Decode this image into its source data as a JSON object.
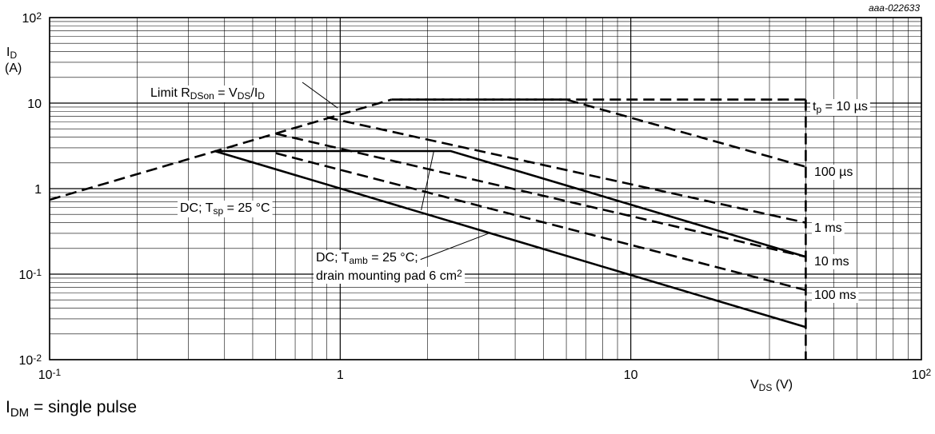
{
  "figure_code": "aaa-022633",
  "footnote": {
    "base": "I",
    "sub": "DM",
    "rest": " = single pulse"
  },
  "chart_data": {
    "type": "line",
    "xscale": "log",
    "yscale": "log",
    "xlim": [
      0.1,
      100
    ],
    "ylim": [
      0.01,
      100
    ],
    "grid": true,
    "x_ticks": [
      {
        "value": 0.1,
        "base": "10",
        "exp": "-1"
      },
      {
        "value": 1,
        "base": "1",
        "exp": ""
      },
      {
        "value": 10,
        "base": "10",
        "exp": ""
      },
      {
        "value": 100,
        "base": "10",
        "exp": "2"
      }
    ],
    "y_ticks": [
      {
        "value": 0.01,
        "base": "10",
        "exp": "-2"
      },
      {
        "value": 0.1,
        "base": "10",
        "exp": "-1"
      },
      {
        "value": 1,
        "base": "1",
        "exp": ""
      },
      {
        "value": 10,
        "base": "10",
        "exp": ""
      },
      {
        "value": 100,
        "base": "10",
        "exp": "2"
      }
    ],
    "ylabel": {
      "base": "I",
      "sub": "D",
      "unit": "(A)"
    },
    "xlabel": {
      "base": "V",
      "sub": "DS",
      "rest": " (V)"
    },
    "series": [
      {
        "name": "Limit R_DSon = V_DS/I_D",
        "style": "dashed",
        "x": [
          0.1,
          1.5
        ],
        "y": [
          0.74,
          11
        ]
      },
      {
        "name": "t_p = 10 µs",
        "style": "dashed",
        "x": [
          1.5,
          40
        ],
        "y": [
          11,
          11
        ]
      },
      {
        "name": "100 µs",
        "style": "dashed",
        "x": [
          1.6,
          6,
          40
        ],
        "y": [
          11,
          11,
          1.8
        ]
      },
      {
        "name": "1 ms",
        "style": "dashed",
        "x": [
          0.9,
          40
        ],
        "y": [
          6.8,
          0.4
        ]
      },
      {
        "name": "10 ms",
        "style": "dashed",
        "x": [
          0.6,
          40
        ],
        "y": [
          4.4,
          0.16
        ]
      },
      {
        "name": "100 ms",
        "style": "dashed",
        "x": [
          0.6,
          40
        ],
        "y": [
          2.6,
          0.065
        ]
      },
      {
        "name": "DC; T_sp = 25 °C",
        "style": "solid",
        "x": [
          0.37,
          2.4,
          40
        ],
        "y": [
          2.75,
          2.75,
          0.16
        ]
      },
      {
        "name": "DC; T_amb = 25 °C; drain mounting pad 6 cm²",
        "style": "solid",
        "x": [
          0.37,
          40
        ],
        "y": [
          2.75,
          0.024
        ]
      },
      {
        "name": "",
        "style": "dashed",
        "x": [
          40,
          40
        ],
        "y": [
          11,
          0.01
        ]
      }
    ],
    "annotations": [
      {
        "parts": [
          [
            "Limit R",
            ""
          ],
          [
            "DSon",
            "sub"
          ],
          [
            " = V",
            ""
          ],
          [
            "DS",
            "sub"
          ],
          [
            "/I",
            ""
          ],
          [
            "D",
            "sub"
          ]
        ]
      },
      {
        "parts": [
          [
            "t",
            ""
          ],
          [
            "p",
            "sub"
          ],
          [
            " = 10 µs",
            ""
          ]
        ]
      },
      {
        "parts": [
          [
            "100 µs",
            ""
          ]
        ]
      },
      {
        "parts": [
          [
            "1 ms",
            ""
          ]
        ]
      },
      {
        "parts": [
          [
            "10 ms",
            ""
          ]
        ]
      },
      {
        "parts": [
          [
            "100 ms",
            ""
          ]
        ]
      },
      {
        "parts": [
          [
            "DC; T",
            ""
          ],
          [
            "sp",
            "sub"
          ],
          [
            " = 25 °C",
            ""
          ]
        ]
      },
      {
        "parts": [
          [
            "DC; T",
            ""
          ],
          [
            "amb",
            "sub"
          ],
          [
            " = 25 °C;",
            ""
          ]
        ]
      },
      {
        "parts": [
          [
            "drain mounting pad 6 cm",
            ""
          ],
          [
            "2",
            "sup"
          ]
        ]
      }
    ]
  }
}
